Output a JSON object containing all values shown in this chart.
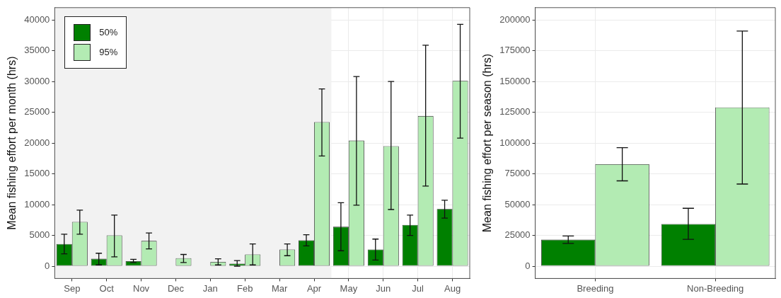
{
  "chart_data": [
    {
      "type": "bar",
      "ylabel": "Mean fishing effort per month (hrs)",
      "categories": [
        "Sep",
        "Oct",
        "Nov",
        "Dec",
        "Jan",
        "Feb",
        "Mar",
        "Apr",
        "May",
        "Jun",
        "Jul",
        "Aug"
      ],
      "series": [
        {
          "name": "50%",
          "color": "#008000",
          "values": [
            3600,
            1200,
            800,
            0,
            0,
            400,
            0,
            4200,
            6400,
            2700,
            6700,
            9300
          ],
          "errors": [
            [
              2000,
              5200
            ],
            [
              200,
              2100
            ],
            [
              600,
              1100
            ],
            null,
            null,
            [
              0,
              900
            ],
            null,
            [
              3300,
              5100
            ],
            [
              2500,
              10300
            ],
            [
              1000,
              4400
            ],
            [
              5000,
              8300
            ],
            [
              7800,
              10700
            ]
          ]
        },
        {
          "name": "95%",
          "color": "#b3ebb3",
          "values": [
            7200,
            5000,
            4100,
            1300,
            700,
            1900,
            2700,
            23400,
            20400,
            19500,
            24400,
            30100
          ],
          "errors": [
            [
              5200,
              9100
            ],
            [
              1500,
              8300
            ],
            [
              2800,
              5400
            ],
            [
              600,
              1900
            ],
            [
              200,
              1200
            ],
            [
              200,
              3600
            ],
            [
              1700,
              3600
            ],
            [
              17900,
              28800
            ],
            [
              9900,
              30800
            ],
            [
              9200,
              30000
            ],
            [
              13000,
              35900
            ],
            [
              20800,
              39300
            ]
          ]
        }
      ],
      "bands": [
        {
          "axis": "x",
          "from": "Sep",
          "to": "Apr",
          "color": "#f2f2f2"
        }
      ],
      "ylim": [
        -2000,
        42000
      ],
      "yticks": [
        0,
        5000,
        10000,
        15000,
        20000,
        25000,
        30000,
        35000,
        40000
      ],
      "grid": true,
      "legend": "top left"
    },
    {
      "type": "bar",
      "ylabel": "Mean fishing effort per season (hrs)",
      "categories": [
        "Breeding",
        "Non-Breeding"
      ],
      "series": [
        {
          "color": "#008000",
          "values": [
            21500,
            34200
          ],
          "errors": [
            [
              18500,
              24500
            ],
            [
              21800,
              47000
            ]
          ]
        },
        {
          "color": "#b3ebb3",
          "values": [
            82800,
            129000
          ],
          "errors": [
            [
              69300,
              96300
            ],
            [
              66700,
              191000
            ]
          ]
        }
      ],
      "ylim": [
        -10000,
        210000
      ],
      "yticks": [
        0,
        25000,
        50000,
        75000,
        100000,
        125000,
        150000,
        175000,
        200000
      ],
      "grid": true
    }
  ]
}
